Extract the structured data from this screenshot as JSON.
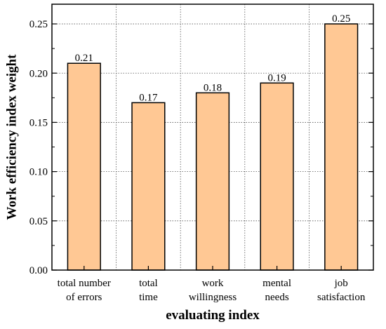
{
  "chart_data": {
    "type": "bar",
    "categories": [
      [
        "total number",
        "of errors"
      ],
      [
        "total",
        "time"
      ],
      [
        "work",
        "willingness"
      ],
      [
        "mental",
        "needs"
      ],
      [
        "job",
        "satisfaction"
      ]
    ],
    "values": [
      0.21,
      0.17,
      0.18,
      0.19,
      0.25
    ],
    "data_labels": [
      "0.21",
      "0.17",
      "0.18",
      "0.19",
      "0.25"
    ],
    "xlabel": "evaluating index",
    "ylabel": "Work efficiency index weight",
    "ylim": [
      0,
      0.27
    ],
    "yticks": [
      0,
      0.05,
      0.1,
      0.15,
      0.2,
      0.25
    ],
    "ytick_labels": [
      "0.00",
      "0.05",
      "0.10",
      "0.15",
      "0.20",
      "0.25"
    ],
    "grid": true,
    "legend": "none",
    "colors": {
      "bar_fill": "#FFC894",
      "bar_stroke": "#000000",
      "grid": "#555555"
    }
  }
}
